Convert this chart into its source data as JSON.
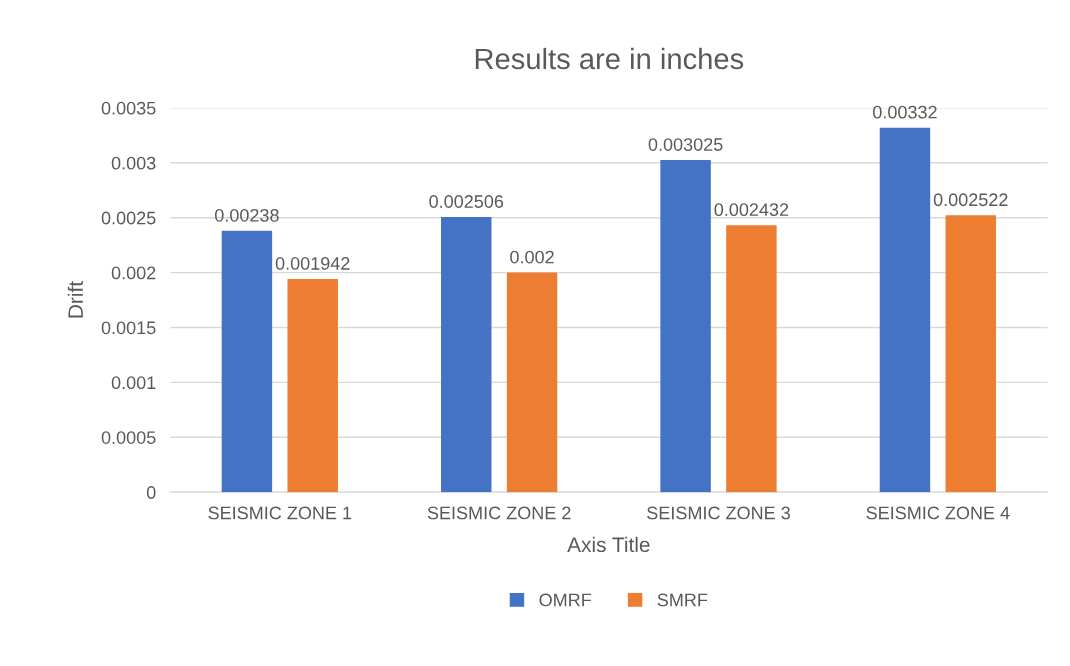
{
  "chart_data": {
    "type": "bar",
    "title": "Results are in inches",
    "xlabel": "Axis Title",
    "ylabel": "Drift",
    "categories": [
      "SEISMIC ZONE 1",
      "SEISMIC ZONE 2",
      "SEISMIC ZONE 3",
      "SEISMIC ZONE 4"
    ],
    "series": [
      {
        "name": "OMRF",
        "color": "#4472c4",
        "values": [
          0.00238,
          0.002506,
          0.003025,
          0.00332
        ]
      },
      {
        "name": "SMRF",
        "color": "#ed7d31",
        "values": [
          0.001942,
          0.002,
          0.002432,
          0.002522
        ]
      }
    ],
    "ylim": [
      0,
      0.0035
    ],
    "yticks": [
      0,
      0.0005,
      0.001,
      0.0015,
      0.002,
      0.0025,
      0.003,
      0.0035
    ],
    "grid": "y",
    "legend": "bottom",
    "data_labels": true
  }
}
